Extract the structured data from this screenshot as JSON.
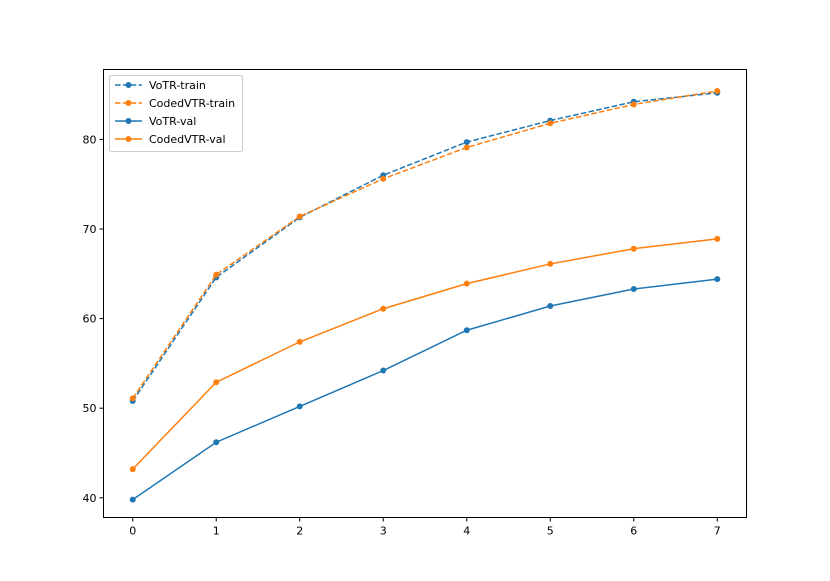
{
  "chart_data": {
    "type": "line",
    "title": "",
    "xlabel": "",
    "ylabel": "",
    "x": [
      0,
      1,
      2,
      3,
      4,
      5,
      6,
      7
    ],
    "xlim": [
      -0.35,
      7.35
    ],
    "ylim": [
      37.8,
      87.8
    ],
    "xticks": [
      0,
      1,
      2,
      3,
      4,
      5,
      6,
      7
    ],
    "yticks": [
      40,
      50,
      60,
      70,
      80
    ],
    "grid": false,
    "legend_position": "top-left",
    "series": [
      {
        "name": "VoTR-train",
        "color": "#1f77b4",
        "dash": true,
        "values": [
          50.8,
          64.6,
          71.3,
          76.0,
          79.7,
          82.1,
          84.2,
          85.2
        ]
      },
      {
        "name": "CodedVTR-train",
        "color": "#ff7f0e",
        "dash": true,
        "values": [
          51.1,
          64.9,
          71.4,
          75.6,
          79.1,
          81.8,
          83.9,
          85.4
        ]
      },
      {
        "name": "VoTR-val",
        "color": "#1f77b4",
        "dash": false,
        "values": [
          39.8,
          46.2,
          50.2,
          54.2,
          58.7,
          61.4,
          63.3,
          64.4
        ]
      },
      {
        "name": "CodedVTR-val",
        "color": "#ff7f0e",
        "dash": false,
        "values": [
          43.2,
          52.9,
          57.4,
          61.1,
          63.9,
          66.1,
          67.8,
          68.9
        ]
      }
    ]
  }
}
